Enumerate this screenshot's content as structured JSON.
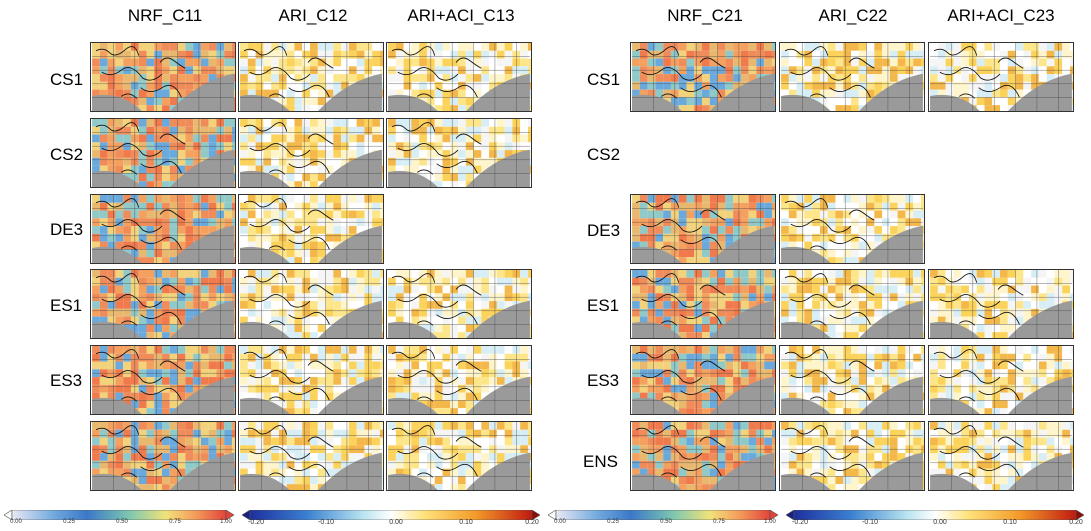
{
  "columns_left": [
    "NRF_C11",
    "ARI_C12",
    "ARI+ACI_C13"
  ],
  "columns_right": [
    "NRF_C21",
    "ARI_C22",
    "ARI+ACI_C23"
  ],
  "rows_left": [
    "CS1",
    "CS2",
    "DE3",
    "ES1",
    "ES3",
    ""
  ],
  "rows_right": [
    "CS1",
    "CS2",
    "DE3",
    "ES1",
    "ES3",
    "ENS"
  ],
  "colorbars": {
    "nrf_ticks": [
      "0.00",
      "0.25",
      "0.50",
      "0.75",
      "1.00"
    ],
    "diff_ticks": [
      "-0.20",
      "-0.10",
      "0.00",
      "0.10",
      "0.20"
    ],
    "nrf_colors": [
      "#e9e9f5",
      "#6fa8dc",
      "#3b78c8",
      "#7ec8b0",
      "#f2e27a",
      "#f49a5a",
      "#e0453a"
    ],
    "diff_colors": [
      "#1e2f9e",
      "#3a7fd0",
      "#b8e4f0",
      "#ffffff",
      "#ffe27a",
      "#f39a2a",
      "#c01a10"
    ]
  }
}
